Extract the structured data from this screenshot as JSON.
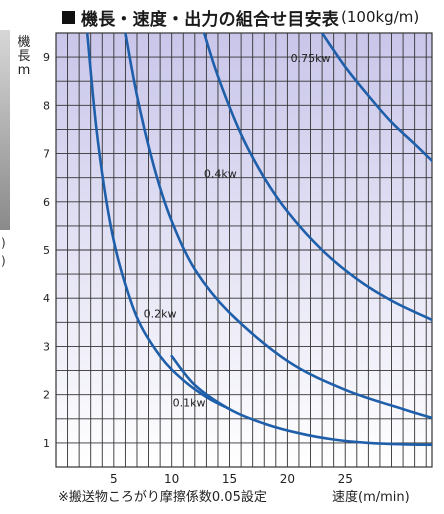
{
  "title": "機長・速度・出力の組合せ目安表",
  "title_unit": "(100kg/m)",
  "ylabel": "機\n長\nm",
  "xlabel": "速度(m/min)",
  "footnote": "※搬送物ころがり摩擦係数0.05設定",
  "left_parens": [
    ")",
    ")"
  ],
  "colors": {
    "curve": "#1f5faa",
    "grid": "#333333",
    "gradient_top": "#c9c6ea",
    "gradient_bottom": "#ffffff"
  },
  "chart_data": {
    "type": "line",
    "title": "機長・速度・出力の組合せ目安表(100kg/m)",
    "xlabel": "速度(m/min)",
    "ylabel": "機長 m",
    "xlim": [
      0,
      32.5
    ],
    "ylim": [
      0.5,
      9.5
    ],
    "xticks": [
      5,
      10,
      15,
      20,
      25
    ],
    "yticks": [
      1,
      2,
      3,
      4,
      5,
      6,
      7,
      8,
      9
    ],
    "grid": true,
    "series": [
      {
        "name": "0.1kw",
        "x": [
          2.7,
          3.5,
          4.5,
          5.5,
          7.0,
          9.0,
          11.0,
          13.0,
          15.0
        ],
        "y": [
          9.5,
          7.5,
          5.8,
          4.7,
          3.6,
          2.8,
          2.3,
          1.95,
          1.7
        ]
      },
      {
        "name": "0.2kw",
        "x": [
          6.0,
          7.0,
          8.5,
          10.0,
          12.0,
          15.0,
          20.0,
          25.0,
          30.0,
          32.5
        ],
        "y": [
          9.5,
          8.2,
          6.7,
          5.6,
          4.6,
          3.7,
          2.7,
          2.1,
          1.7,
          1.52
        ]
      },
      {
        "name": "0.4kw",
        "x": [
          12.8,
          14.0,
          16.0,
          18.0,
          20.0,
          23.0,
          26.0,
          29.0,
          32.5
        ],
        "y": [
          9.5,
          8.6,
          7.4,
          6.5,
          5.8,
          5.0,
          4.4,
          3.95,
          3.55
        ]
      },
      {
        "name": "0.75kw",
        "x": [
          23.0,
          25.0,
          27.0,
          29.0,
          31.0,
          32.5
        ],
        "y": [
          9.5,
          8.8,
          8.2,
          7.65,
          7.2,
          6.85
        ]
      },
      {
        "name": "",
        "x": [
          10.0,
          12.0,
          15.0,
          18.0,
          21.0,
          24.0,
          27.0,
          30.0,
          32.5
        ],
        "y": [
          2.8,
          2.2,
          1.7,
          1.4,
          1.2,
          1.07,
          1.0,
          0.97,
          0.96
        ]
      }
    ]
  }
}
